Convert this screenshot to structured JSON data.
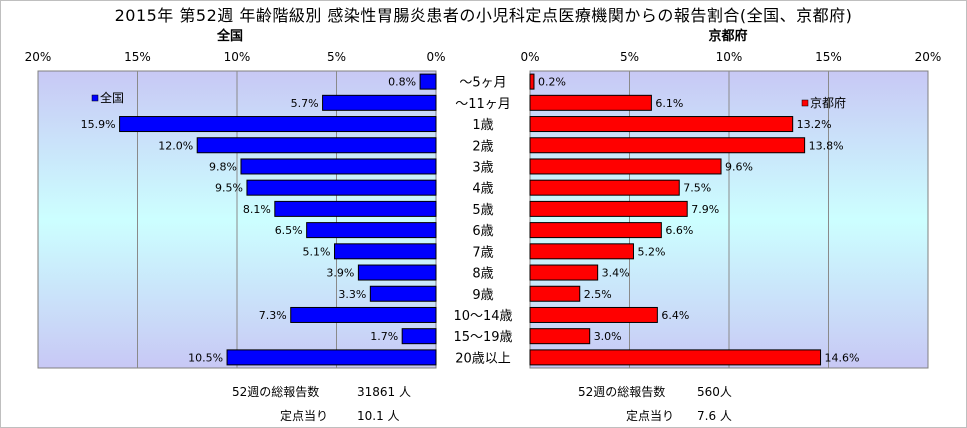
{
  "title": "2015年 第52週 年齢階級別 感染性胃腸炎患者の小児科定点医療機関からの報告割合(全国、京都府)",
  "chart_data": {
    "type": "bar",
    "categories": [
      "～5ヶ月",
      "～11ヶ月",
      "1歳",
      "2歳",
      "3歳",
      "4歳",
      "5歳",
      "6歳",
      "7歳",
      "8歳",
      "9歳",
      "10～14歳",
      "15～19歳",
      "20歳以上"
    ],
    "left": {
      "panel_title": "全国",
      "legend": "全国",
      "color": "#0000ff",
      "values": [
        0.8,
        5.7,
        15.9,
        12.0,
        9.8,
        9.5,
        8.1,
        6.5,
        5.1,
        3.9,
        3.3,
        7.3,
        1.7,
        10.5
      ],
      "value_labels": [
        "0.8%",
        "5.7%",
        "15.9%",
        "12.0%",
        "9.8%",
        "9.5%",
        "8.1%",
        "6.5%",
        "5.1%",
        "3.9%",
        "3.3%",
        "7.3%",
        "1.7%",
        "10.5%"
      ],
      "ticks": [
        "20%",
        "15%",
        "10%",
        "5%",
        "0%"
      ],
      "xlim": [
        0,
        20
      ]
    },
    "right": {
      "panel_title": "京都府",
      "legend": "京都府",
      "color": "#ff0000",
      "values": [
        0.2,
        6.1,
        13.2,
        13.8,
        9.6,
        7.5,
        7.9,
        6.6,
        5.2,
        3.4,
        2.5,
        6.4,
        3.0,
        14.6
      ],
      "value_labels": [
        "0.2%",
        "6.1%",
        "13.2%",
        "13.8%",
        "9.6%",
        "7.5%",
        "7.9%",
        "6.6%",
        "5.2%",
        "3.4%",
        "2.5%",
        "6.4%",
        "3.0%",
        "14.6%"
      ],
      "ticks": [
        "0%",
        "5%",
        "10%",
        "15%",
        "20%"
      ],
      "xlim": [
        0,
        20
      ]
    }
  },
  "footer": {
    "left_total_label": "52週の総報告数",
    "left_total_value": "31861 人",
    "left_per_label": "定点当り",
    "left_per_value": "10.1 人",
    "right_total_label": "52週の総報告数",
    "right_total_value": "560人",
    "right_per_label": "定点当り",
    "right_per_value": "7.6 人"
  }
}
